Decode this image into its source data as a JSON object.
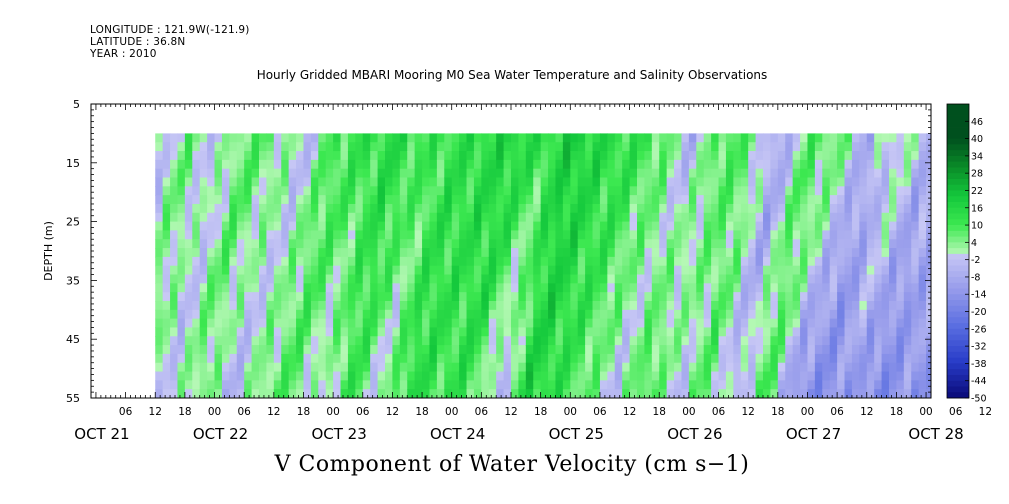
{
  "header": {
    "longitude": "LONGITUDE : 121.9W(-121.9)",
    "latitude": "LATITUDE : 36.8N",
    "year": "YEAR : 2010"
  },
  "chart_data": {
    "type": "heatmap",
    "title": "Hourly Gridded MBARI Mooring M0 Sea Water Temperature and Salinity Observations",
    "xlabel": "V Component of Water Velocity (cm s−1)",
    "ylabel": "DEPTH (m)",
    "ylim": [
      5,
      55
    ],
    "yticks": [
      5,
      15,
      25,
      35,
      45,
      55
    ],
    "y_inverted": true,
    "data_depth_range": [
      10,
      55
    ],
    "x_hour_ticks": [
      "06",
      "12",
      "18",
      "00",
      "06",
      "12",
      "18",
      "00",
      "06",
      "12",
      "18",
      "00",
      "06",
      "12",
      "18",
      "00",
      "06",
      "12",
      "18",
      "00",
      "06",
      "12",
      "18",
      "00",
      "06",
      "12",
      "18",
      "00",
      "06",
      "12",
      "18",
      "00"
    ],
    "x_day_labels": [
      "OCT 21",
      "OCT 22",
      "OCT 23",
      "OCT 24",
      "OCT 25",
      "OCT 26",
      "OCT 27",
      "OCT 28"
    ],
    "colorbar_labels": [
      "46",
      "40",
      "34",
      "28",
      "22",
      "16",
      "10",
      "4",
      "-2",
      "-8",
      "-14",
      "-20",
      "-26",
      "-32",
      "-38",
      "-44",
      "-50"
    ],
    "colorbar_range": [
      -50,
      52
    ],
    "data_start_day": "OCT 21 12:00",
    "data_end_day": "OCT 28 02:00",
    "profiles": [
      {
        "day": "OCT 21 12:00",
        "v_surface": -4,
        "v_bottom": -8
      },
      {
        "day": "OCT 21 18:00",
        "v_surface": 6,
        "v_bottom": 4
      },
      {
        "day": "OCT 22 00:00",
        "v_surface": -3,
        "v_bottom": -2
      },
      {
        "day": "OCT 22 06:00",
        "v_surface": 8,
        "v_bottom": 6
      },
      {
        "day": "OCT 22 12:00",
        "v_surface": 5,
        "v_bottom": -6
      },
      {
        "day": "OCT 22 18:00",
        "v_surface": -4,
        "v_bottom": 5
      },
      {
        "day": "OCT 23 00:00",
        "v_surface": 10,
        "v_bottom": 8
      },
      {
        "day": "OCT 23 06:00",
        "v_surface": 12,
        "v_bottom": -4
      },
      {
        "day": "OCT 23 12:00",
        "v_surface": 14,
        "v_bottom": 12
      },
      {
        "day": "OCT 23 18:00",
        "v_surface": 10,
        "v_bottom": -3
      },
      {
        "day": "OCT 24 00:00",
        "v_surface": 12,
        "v_bottom": 14
      },
      {
        "day": "OCT 24 06:00",
        "v_surface": 14,
        "v_bottom": 10
      },
      {
        "day": "OCT 24 12:00",
        "v_surface": 16,
        "v_bottom": 12
      },
      {
        "day": "OCT 24 18:00",
        "v_surface": 12,
        "v_bottom": -8
      },
      {
        "day": "OCT 25 00:00",
        "v_surface": 18,
        "v_bottom": 16
      },
      {
        "day": "OCT 25 06:00",
        "v_surface": 14,
        "v_bottom": 12
      },
      {
        "day": "OCT 25 12:00",
        "v_surface": 12,
        "v_bottom": 6
      },
      {
        "day": "OCT 25 18:00",
        "v_surface": 8,
        "v_bottom": -4
      },
      {
        "day": "OCT 26 00:00",
        "v_surface": -6,
        "v_bottom": 12
      },
      {
        "day": "OCT 26 06:00",
        "v_surface": 10,
        "v_bottom": -4
      },
      {
        "day": "OCT 26 12:00",
        "v_surface": 6,
        "v_bottom": 8
      },
      {
        "day": "OCT 26 18:00",
        "v_surface": -10,
        "v_bottom": -6
      },
      {
        "day": "OCT 27 00:00",
        "v_surface": 8,
        "v_bottom": 10
      },
      {
        "day": "OCT 27 06:00",
        "v_surface": 6,
        "v_bottom": -14
      },
      {
        "day": "OCT 27 12:00",
        "v_surface": -8,
        "v_bottom": -16
      },
      {
        "day": "OCT 27 18:00",
        "v_surface": 4,
        "v_bottom": -12
      },
      {
        "day": "OCT 28 00:00",
        "v_surface": -6,
        "v_bottom": -18
      },
      {
        "day": "OCT 28 02:00",
        "v_surface": -4,
        "v_bottom": -14
      }
    ]
  }
}
